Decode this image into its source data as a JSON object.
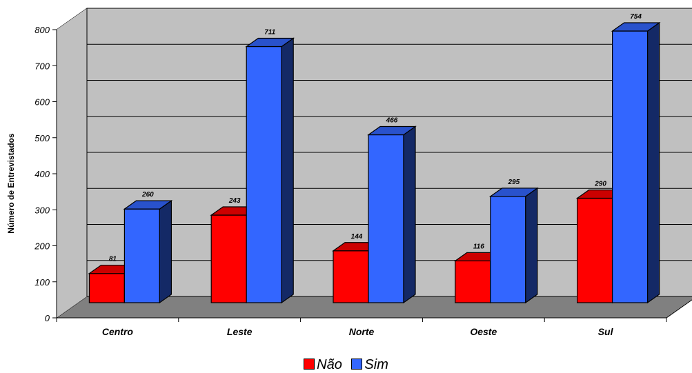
{
  "chart_data": {
    "type": "bar",
    "ylabel": "Número de Entrevistados",
    "xlabel": "",
    "ylim": [
      0,
      800
    ],
    "yticks": [
      0,
      100,
      200,
      300,
      400,
      500,
      600,
      700,
      800
    ],
    "categories": [
      "Centro",
      "Leste",
      "Norte",
      "Oeste",
      "Sul"
    ],
    "series": [
      {
        "name": "Não",
        "values": [
          81,
          243,
          144,
          116,
          290
        ],
        "color": "#ff0000"
      },
      {
        "name": "Sim",
        "values": [
          260,
          711,
          466,
          295,
          754
        ],
        "color": "#3366ff"
      }
    ],
    "legend_position": "bottom",
    "grid": true,
    "style": "3d-clustered-column"
  }
}
